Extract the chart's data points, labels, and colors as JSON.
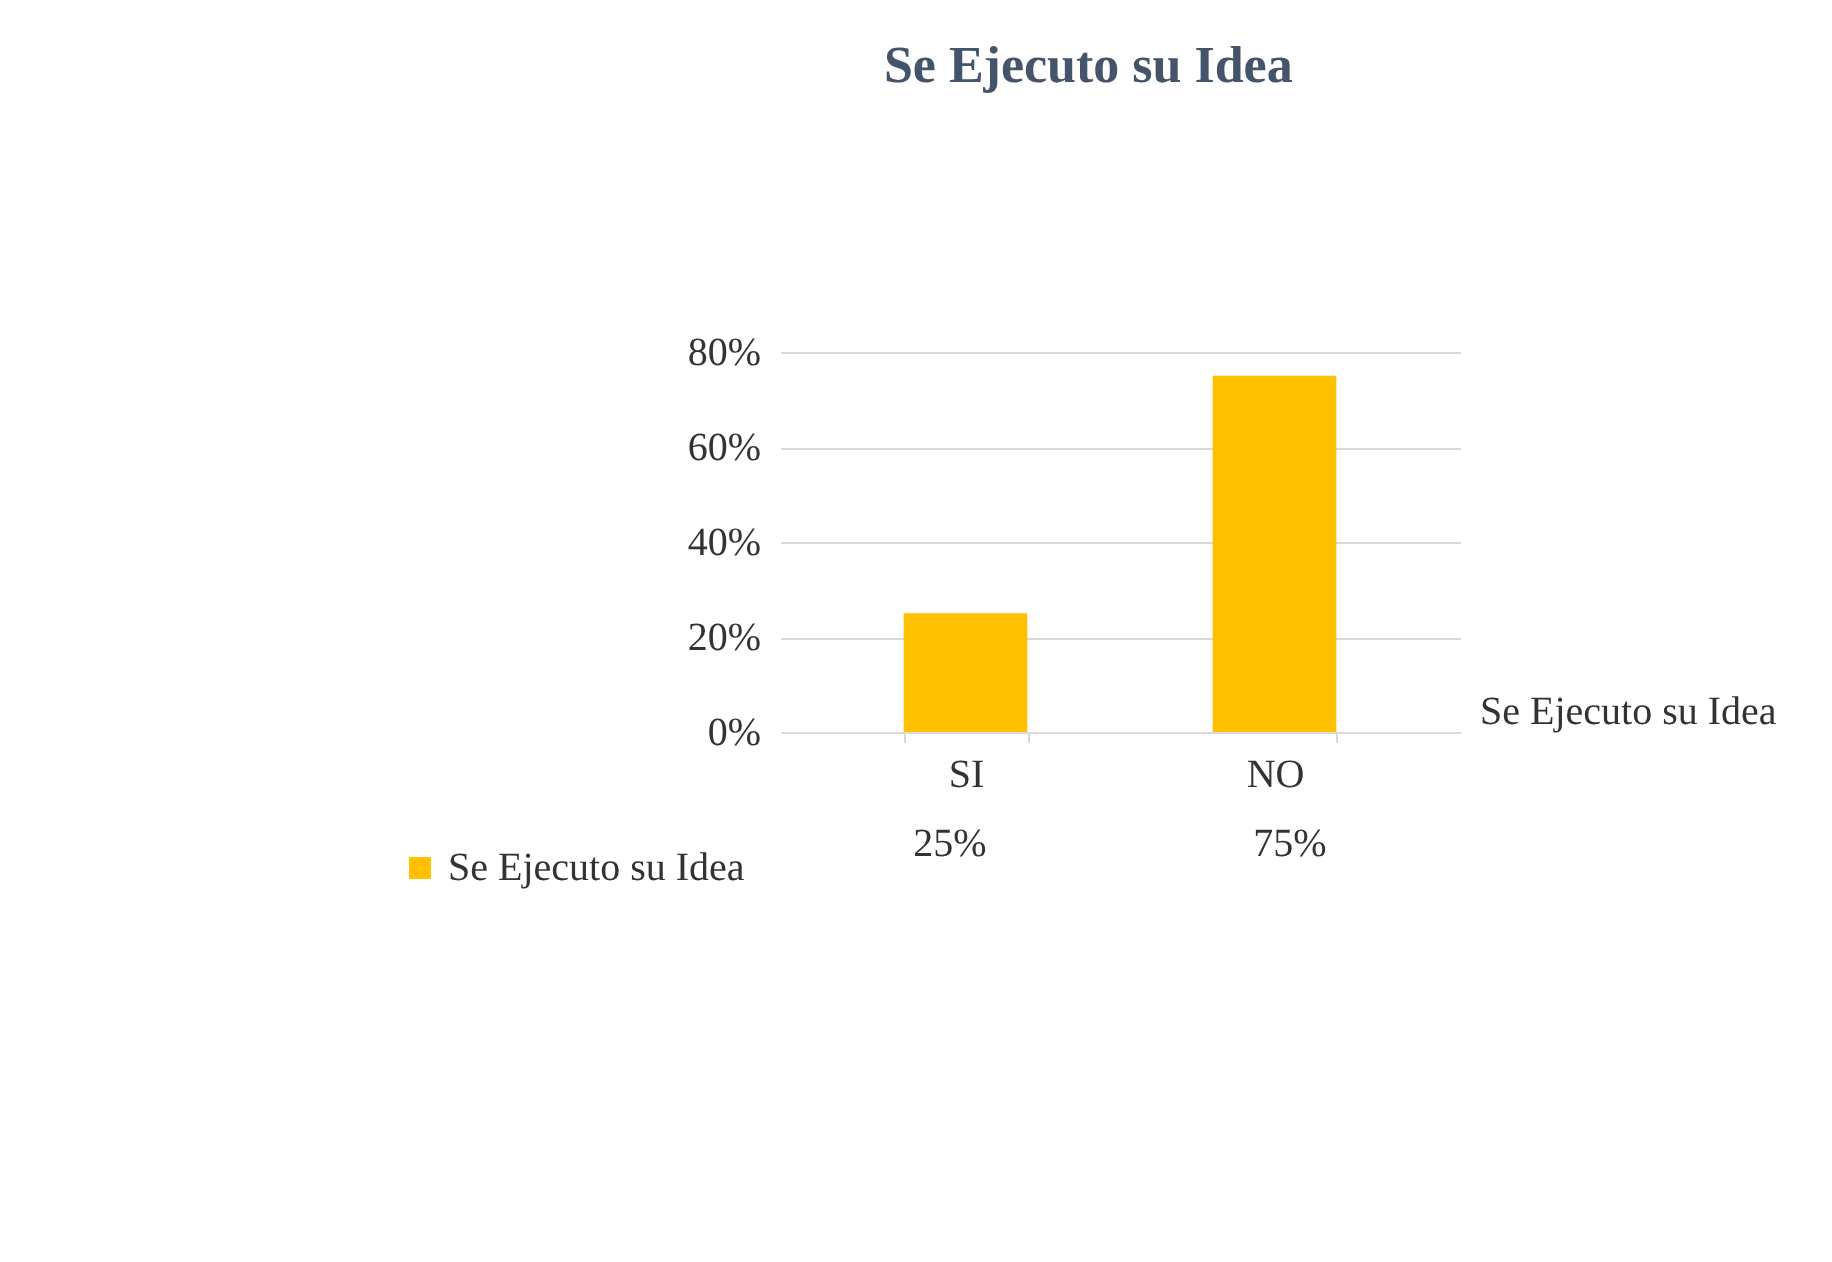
{
  "chart_data": {
    "type": "bar",
    "title": "Se Ejecuto su Idea",
    "categories": [
      "SI",
      "NO"
    ],
    "series": [
      {
        "name": "Se Ejecuto su Idea",
        "color": "#ffc000",
        "values": [
          25,
          75
        ],
        "value_labels": [
          "25%",
          "75%"
        ]
      }
    ],
    "ylim": [
      0,
      80
    ],
    "yticks": [
      {
        "value": 0,
        "label": "0%"
      },
      {
        "value": 20,
        "label": "20%"
      },
      {
        "value": 40,
        "label": "40%"
      },
      {
        "value": 60,
        "label": "60%"
      },
      {
        "value": 80,
        "label": "80%"
      }
    ],
    "grid": "y",
    "legend": "bottom left",
    "annotations": [
      "Se Ejecuto su Idea"
    ]
  }
}
